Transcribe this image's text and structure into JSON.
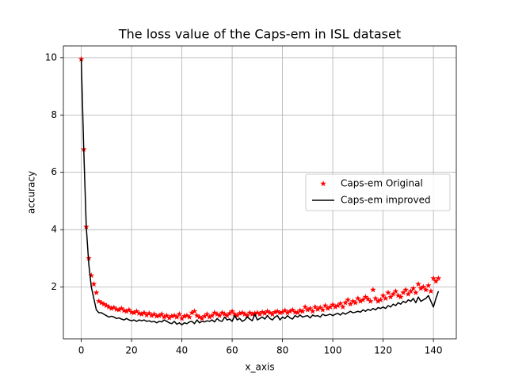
{
  "chart_data": {
    "type": "line",
    "title": "The loss value of the Caps-em in ISL dataset",
    "x_label": "x_axis",
    "y_label": "accuracy",
    "x": [
      0,
      1,
      2,
      3,
      4,
      5,
      6,
      7,
      8,
      9,
      10,
      11,
      12,
      13,
      14,
      15,
      16,
      17,
      18,
      19,
      20,
      21,
      22,
      23,
      24,
      25,
      26,
      27,
      28,
      29,
      30,
      31,
      32,
      33,
      34,
      35,
      36,
      37,
      38,
      39,
      40,
      41,
      42,
      43,
      44,
      45,
      46,
      47,
      48,
      49,
      50,
      51,
      52,
      53,
      54,
      55,
      56,
      57,
      58,
      59,
      60,
      61,
      62,
      63,
      64,
      65,
      66,
      67,
      68,
      69,
      70,
      71,
      72,
      73,
      74,
      75,
      76,
      77,
      78,
      79,
      80,
      81,
      82,
      83,
      84,
      85,
      86,
      87,
      88,
      89,
      90,
      91,
      92,
      93,
      94,
      95,
      96,
      97,
      98,
      99,
      100,
      101,
      102,
      103,
      104,
      105,
      106,
      107,
      108,
      109,
      110,
      111,
      112,
      113,
      114,
      115,
      116,
      117,
      118,
      119,
      120,
      121,
      122,
      123,
      124,
      125,
      126,
      127,
      128,
      129,
      130,
      131,
      132,
      133,
      134,
      135,
      136,
      137,
      138,
      139,
      140,
      141,
      142
    ],
    "series": [
      {
        "name": "Caps-em Original",
        "color": "#ff0000",
        "marker": "star",
        "linestyle": "none",
        "values": [
          9.95,
          6.8,
          4.1,
          3.0,
          2.4,
          2.1,
          1.8,
          1.5,
          1.45,
          1.4,
          1.35,
          1.3,
          1.25,
          1.28,
          1.22,
          1.2,
          1.25,
          1.18,
          1.15,
          1.2,
          1.12,
          1.1,
          1.15,
          1.08,
          1.05,
          1.1,
          1.02,
          1.08,
          1.0,
          1.05,
          0.98,
          1.0,
          1.05,
          0.95,
          1.0,
          0.92,
          0.98,
          1.0,
          0.95,
          1.05,
          0.9,
          0.98,
          1.0,
          0.95,
          1.1,
          1.15,
          1.0,
          0.95,
          0.9,
          0.98,
          1.05,
          0.95,
          1.0,
          1.1,
          1.05,
          1.0,
          1.1,
          1.05,
          1.0,
          1.08,
          1.15,
          1.05,
          1.0,
          1.08,
          1.1,
          1.05,
          1.0,
          1.1,
          1.05,
          1.08,
          1.1,
          1.05,
          1.12,
          1.08,
          1.15,
          1.1,
          1.05,
          1.12,
          1.15,
          1.1,
          1.12,
          1.18,
          1.1,
          1.15,
          1.2,
          1.12,
          1.1,
          1.18,
          1.15,
          1.3,
          1.2,
          1.25,
          1.15,
          1.3,
          1.22,
          1.28,
          1.2,
          1.35,
          1.25,
          1.3,
          1.38,
          1.3,
          1.35,
          1.42,
          1.3,
          1.45,
          1.55,
          1.4,
          1.5,
          1.45,
          1.6,
          1.5,
          1.55,
          1.65,
          1.58,
          1.5,
          1.9,
          1.6,
          1.5,
          1.55,
          1.7,
          1.6,
          1.8,
          1.65,
          1.75,
          1.85,
          1.7,
          1.65,
          1.8,
          1.9,
          1.75,
          1.85,
          1.95,
          1.8,
          2.1,
          1.95,
          2.0,
          1.9,
          2.05,
          1.85,
          2.3,
          2.2,
          2.3
        ]
      },
      {
        "name": "Caps-em improved",
        "color": "#000000",
        "marker": "none",
        "linestyle": "solid",
        "values": [
          9.95,
          6.8,
          4.1,
          2.8,
          2.0,
          1.6,
          1.2,
          1.1,
          1.1,
          1.05,
          1.0,
          0.95,
          0.98,
          0.95,
          0.9,
          0.92,
          0.88,
          0.85,
          0.9,
          0.85,
          0.82,
          0.85,
          0.8,
          0.85,
          0.82,
          0.85,
          0.8,
          0.82,
          0.78,
          0.8,
          0.75,
          0.8,
          0.78,
          0.85,
          0.8,
          0.75,
          0.72,
          0.8,
          0.7,
          0.75,
          0.68,
          0.75,
          0.72,
          0.78,
          0.8,
          0.72,
          0.85,
          0.75,
          0.8,
          0.78,
          0.82,
          0.8,
          0.85,
          0.78,
          0.9,
          0.82,
          0.8,
          0.95,
          0.85,
          0.88,
          0.8,
          1.0,
          0.85,
          0.9,
          0.8,
          0.85,
          0.95,
          0.88,
          0.82,
          1.05,
          0.85,
          0.9,
          0.95,
          0.88,
          1.0,
          0.9,
          0.85,
          0.95,
          1.0,
          0.85,
          0.95,
          0.9,
          1.0,
          0.92,
          0.88,
          1.0,
          0.95,
          1.02,
          0.95,
          0.98,
          1.0,
          0.92,
          1.02,
          0.98,
          1.0,
          0.95,
          1.05,
          1.0,
          1.02,
          1.05,
          1.0,
          1.05,
          1.08,
          1.02,
          1.1,
          1.05,
          1.1,
          1.15,
          1.1,
          1.12,
          1.15,
          1.12,
          1.2,
          1.15,
          1.22,
          1.18,
          1.25,
          1.2,
          1.28,
          1.25,
          1.3,
          1.25,
          1.35,
          1.3,
          1.4,
          1.35,
          1.45,
          1.4,
          1.5,
          1.45,
          1.55,
          1.5,
          1.6,
          1.45,
          1.65,
          1.5,
          1.55,
          1.6,
          1.7,
          1.5,
          1.3,
          1.6,
          1.85
        ]
      }
    ],
    "xlim": [
      -7.1,
      149.1
    ],
    "ylim": [
      0.19,
      10.41
    ],
    "xticks": [
      0,
      20,
      40,
      60,
      80,
      100,
      120,
      140
    ],
    "yticks": [
      2,
      4,
      6,
      8,
      10
    ],
    "grid": true,
    "legend": "center right"
  }
}
